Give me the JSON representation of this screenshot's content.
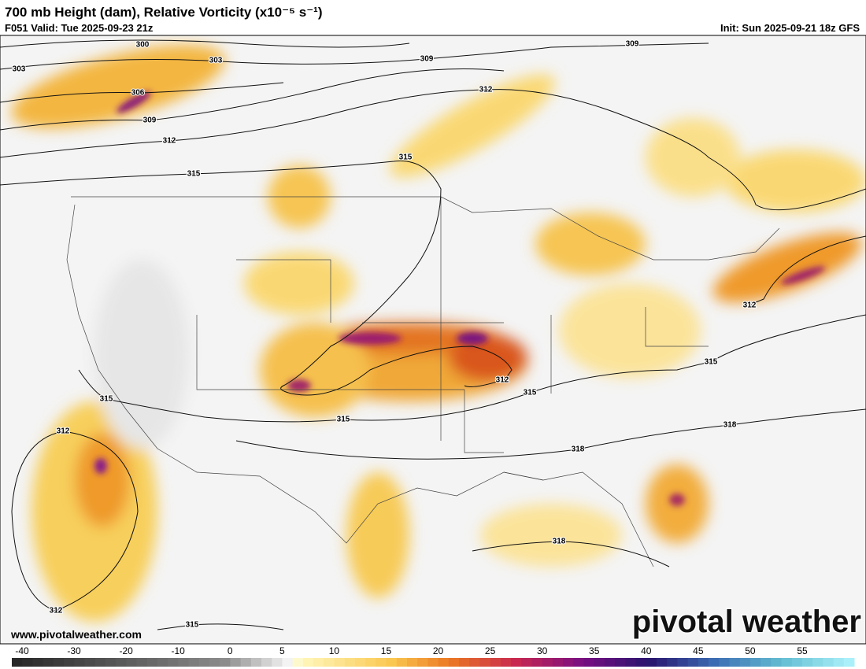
{
  "header": {
    "title": "700 mb Height (dam), Relative Vorticity (x10⁻⁵ s⁻¹)",
    "valid": "F051 Valid: Tue 2025-09-23 21z",
    "init": "Init: Sun 2025-09-21 18z GFS"
  },
  "map": {
    "contour_labels": [
      300,
      303,
      303,
      306,
      309,
      312,
      315,
      309,
      309,
      312,
      315,
      312,
      315,
      312,
      315,
      315,
      312,
      315,
      318,
      318,
      318,
      312,
      315
    ]
  },
  "footer": {
    "website": "www.pivotalweather.com",
    "watermark": "pivotal weather"
  },
  "colorbar": {
    "ticks": [
      -40,
      -30,
      -20,
      -10,
      0,
      5,
      10,
      15,
      20,
      25,
      30,
      35,
      40,
      45,
      50,
      55
    ]
  }
}
